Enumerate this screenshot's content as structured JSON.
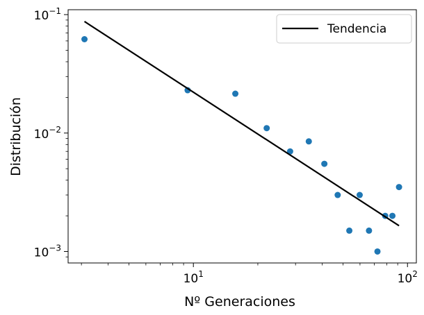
{
  "chart_data": {
    "type": "scatter",
    "xlabel": "Nº Generaciones",
    "ylabel": "Distribución",
    "xscale": "log",
    "yscale": "log",
    "xlim": [
      2.6,
      110
    ],
    "ylim": [
      0.0008,
      0.11
    ],
    "grid": false,
    "legend_position": "top-right",
    "x_ticks": [
      {
        "value": 10,
        "base": "10",
        "exp": "1"
      },
      {
        "value": 100,
        "base": "10",
        "exp": "2"
      }
    ],
    "y_ticks": [
      {
        "value": 0.001,
        "base": "10",
        "exp": "−3"
      },
      {
        "value": 0.01,
        "base": "10",
        "exp": "−2"
      },
      {
        "value": 0.1,
        "base": "10",
        "exp": "−1"
      }
    ],
    "points": {
      "color": "#1f77b4",
      "x": [
        3.1,
        9.4,
        15.7,
        22.0,
        28.3,
        34.6,
        40.9,
        47.2,
        53.5,
        59.8,
        66.1,
        72.4,
        78.7,
        85.0,
        91.3
      ],
      "y": [
        0.062,
        0.023,
        0.0215,
        0.011,
        0.007,
        0.0085,
        0.0055,
        0.003,
        0.0015,
        0.003,
        0.0015,
        0.001,
        0.002,
        0.002,
        0.0035
      ]
    },
    "trend": {
      "name": "Tendencia",
      "color": "#000000",
      "x": [
        3.1,
        91.3
      ],
      "y": [
        0.0875,
        0.00165
      ]
    }
  }
}
